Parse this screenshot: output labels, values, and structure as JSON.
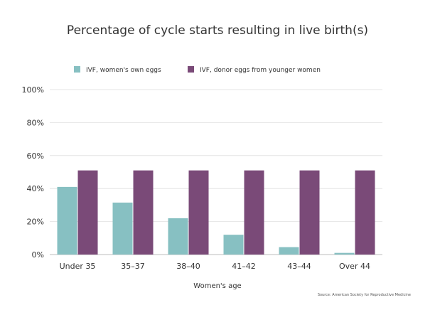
{
  "chart_data": {
    "type": "bar",
    "title": "Percentage of cycle starts resulting in live birth(s)",
    "xlabel": "Women's age",
    "ylabel": "",
    "categories": [
      "Under 35",
      "35–37",
      "38–40",
      "41–42",
      "43–44",
      "Over 44"
    ],
    "series": [
      {
        "name": "IVF, women's own eggs",
        "color": "#87c0c2",
        "values": [
          41,
          31.5,
          22,
          12,
          4.5,
          1
        ]
      },
      {
        "name": "IVF, donor eggs from younger women",
        "color": "#7a4a78",
        "values": [
          51,
          51,
          51,
          51,
          51,
          51
        ]
      }
    ],
    "ylim": [
      0,
      100
    ],
    "yticks": [
      0,
      20,
      40,
      60,
      80,
      100
    ],
    "ytick_labels": [
      "0%",
      "20%",
      "40%",
      "60%",
      "80%",
      "100%"
    ],
    "grid": true,
    "legend_position": "top",
    "source": "Source: American Society for Reproductive Medicine"
  }
}
